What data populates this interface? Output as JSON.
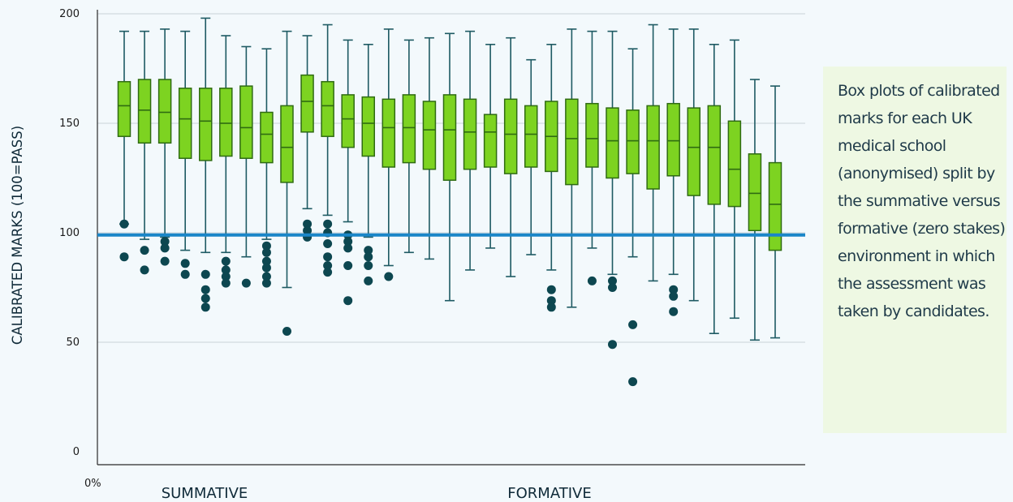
{
  "annotation": "Box plots of calibrated marks for each UK medical school (anonymised) split by the summative versus formative (zero stakes) environment in which the assessment was taken by candidates.",
  "chart_data": {
    "type": "box",
    "ylabel": "CALIBRATED MARKS (100=PASS)",
    "ylim": [
      0,
      200
    ],
    "yticks": [
      0,
      50,
      100,
      150,
      200
    ],
    "x_origin_label": "0%",
    "groups": [
      "SUMMATIVE",
      "FORMATIVE"
    ],
    "reference_line": {
      "value": 99,
      "color": "#1a86c8"
    },
    "colors": {
      "box_fill": "#7dd321",
      "box_stroke": "#2f6b12",
      "whisker": "#1e5a63",
      "outlier": "#0d4750",
      "grid": "#c9d3d9"
    },
    "boxes": [
      {
        "group": "SUMMATIVE",
        "whisker_low": 104,
        "q1": 144,
        "median": 158,
        "q3": 169,
        "whisker_high": 192,
        "outliers": [
          104,
          89
        ]
      },
      {
        "group": "SUMMATIVE",
        "whisker_low": 97,
        "q1": 141,
        "median": 156,
        "q3": 170,
        "whisker_high": 192,
        "outliers": [
          92,
          83
        ]
      },
      {
        "group": "SUMMATIVE",
        "whisker_low": 98,
        "q1": 141,
        "median": 155,
        "q3": 170,
        "whisker_high": 193,
        "outliers": [
          96,
          93,
          87
        ]
      },
      {
        "group": "SUMMATIVE",
        "whisker_low": 92,
        "q1": 134,
        "median": 152,
        "q3": 166,
        "whisker_high": 192,
        "outliers": [
          86,
          81
        ]
      },
      {
        "group": "SUMMATIVE",
        "whisker_low": 91,
        "q1": 133,
        "median": 151,
        "q3": 166,
        "whisker_high": 198,
        "outliers": [
          81,
          74,
          70,
          66
        ]
      },
      {
        "group": "SUMMATIVE",
        "whisker_low": 91,
        "q1": 135,
        "median": 150,
        "q3": 166,
        "whisker_high": 190,
        "outliers": [
          87,
          83,
          80,
          77
        ]
      },
      {
        "group": "SUMMATIVE",
        "whisker_low": 89,
        "q1": 134,
        "median": 148,
        "q3": 167,
        "whisker_high": 185,
        "outliers": [
          77
        ]
      },
      {
        "group": "SUMMATIVE",
        "whisker_low": 97,
        "q1": 132,
        "median": 145,
        "q3": 155,
        "whisker_high": 184,
        "outliers": [
          94,
          91,
          87,
          84,
          80,
          77
        ]
      },
      {
        "group": "SUMMATIVE",
        "whisker_low": 75,
        "q1": 123,
        "median": 139,
        "q3": 158,
        "whisker_high": 192,
        "outliers": [
          55
        ]
      },
      {
        "group": "FORMATIVE",
        "whisker_low": 111,
        "q1": 146,
        "median": 160,
        "q3": 172,
        "whisker_high": 190,
        "outliers": [
          104,
          101,
          98
        ]
      },
      {
        "group": "FORMATIVE",
        "whisker_low": 108,
        "q1": 144,
        "median": 158,
        "q3": 169,
        "whisker_high": 195,
        "outliers": [
          104,
          100,
          95,
          89,
          85,
          82
        ]
      },
      {
        "group": "FORMATIVE",
        "whisker_low": 105,
        "q1": 139,
        "median": 152,
        "q3": 163,
        "whisker_high": 188,
        "outliers": [
          99,
          96,
          93,
          85,
          69
        ]
      },
      {
        "group": "FORMATIVE",
        "whisker_low": 98,
        "q1": 135,
        "median": 150,
        "q3": 162,
        "whisker_high": 186,
        "outliers": [
          92,
          89,
          85,
          78
        ]
      },
      {
        "group": "FORMATIVE",
        "whisker_low": 85,
        "q1": 130,
        "median": 148,
        "q3": 161,
        "whisker_high": 193,
        "outliers": [
          80
        ]
      },
      {
        "group": "FORMATIVE",
        "whisker_low": 91,
        "q1": 132,
        "median": 148,
        "q3": 163,
        "whisker_high": 188,
        "outliers": []
      },
      {
        "group": "FORMATIVE",
        "whisker_low": 88,
        "q1": 129,
        "median": 147,
        "q3": 160,
        "whisker_high": 189,
        "outliers": []
      },
      {
        "group": "FORMATIVE",
        "whisker_low": 69,
        "q1": 124,
        "median": 147,
        "q3": 163,
        "whisker_high": 191,
        "outliers": []
      },
      {
        "group": "FORMATIVE",
        "whisker_low": 83,
        "q1": 129,
        "median": 146,
        "q3": 161,
        "whisker_high": 192,
        "outliers": []
      },
      {
        "group": "FORMATIVE",
        "whisker_low": 93,
        "q1": 130,
        "median": 146,
        "q3": 154,
        "whisker_high": 186,
        "outliers": []
      },
      {
        "group": "FORMATIVE",
        "whisker_low": 80,
        "q1": 127,
        "median": 145,
        "q3": 161,
        "whisker_high": 189,
        "outliers": []
      },
      {
        "group": "FORMATIVE",
        "whisker_low": 90,
        "q1": 130,
        "median": 145,
        "q3": 158,
        "whisker_high": 179,
        "outliers": []
      },
      {
        "group": "FORMATIVE",
        "whisker_low": 83,
        "q1": 128,
        "median": 144,
        "q3": 160,
        "whisker_high": 186,
        "outliers": [
          74,
          69,
          66
        ]
      },
      {
        "group": "FORMATIVE",
        "whisker_low": 66,
        "q1": 122,
        "median": 143,
        "q3": 161,
        "whisker_high": 193,
        "outliers": []
      },
      {
        "group": "FORMATIVE",
        "whisker_low": 93,
        "q1": 130,
        "median": 143,
        "q3": 159,
        "whisker_high": 192,
        "outliers": [
          78
        ]
      },
      {
        "group": "FORMATIVE",
        "whisker_low": 81,
        "q1": 125,
        "median": 142,
        "q3": 157,
        "whisker_high": 192,
        "outliers": [
          78,
          75,
          49
        ]
      },
      {
        "group": "FORMATIVE",
        "whisker_low": 89,
        "q1": 127,
        "median": 142,
        "q3": 156,
        "whisker_high": 184,
        "outliers": [
          58,
          32
        ]
      },
      {
        "group": "FORMATIVE",
        "whisker_low": 78,
        "q1": 120,
        "median": 142,
        "q3": 158,
        "whisker_high": 195,
        "outliers": []
      },
      {
        "group": "FORMATIVE",
        "whisker_low": 81,
        "q1": 126,
        "median": 142,
        "q3": 159,
        "whisker_high": 193,
        "outliers": [
          74,
          71,
          64
        ]
      },
      {
        "group": "FORMATIVE",
        "whisker_low": 69,
        "q1": 117,
        "median": 139,
        "q3": 157,
        "whisker_high": 193,
        "outliers": []
      },
      {
        "group": "FORMATIVE",
        "whisker_low": 54,
        "q1": 113,
        "median": 139,
        "q3": 158,
        "whisker_high": 186,
        "outliers": []
      },
      {
        "group": "FORMATIVE",
        "whisker_low": 61,
        "q1": 112,
        "median": 129,
        "q3": 151,
        "whisker_high": 188,
        "outliers": []
      },
      {
        "group": "FORMATIVE",
        "whisker_low": 51,
        "q1": 101,
        "median": 118,
        "q3": 136,
        "whisker_high": 170,
        "outliers": []
      },
      {
        "group": "FORMATIVE",
        "whisker_low": 52,
        "q1": 92,
        "median": 113,
        "q3": 132,
        "whisker_high": 167,
        "outliers": []
      }
    ]
  }
}
